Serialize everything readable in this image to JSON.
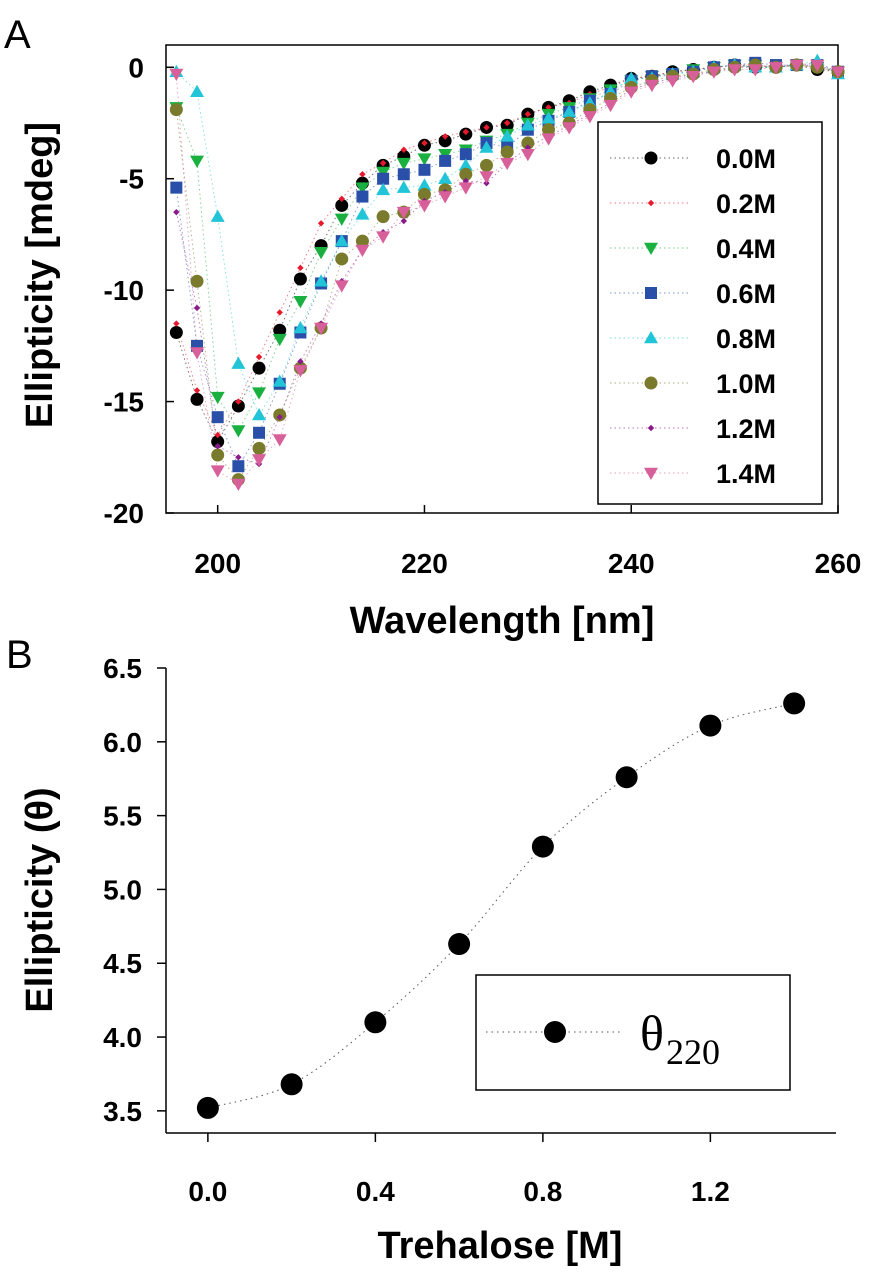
{
  "chart_data": [
    {
      "panel": "A",
      "type": "scatter",
      "xlabel": "Wavelength [nm]",
      "ylabel": "Ellipticity [mdeg]",
      "xlim": [
        195,
        260
      ],
      "ylim": [
        -20,
        1
      ],
      "xticks": [
        200,
        220,
        240,
        260
      ],
      "yticks": [
        0,
        -5,
        -10,
        -15,
        -20
      ],
      "grid": false,
      "legend_position": "right",
      "x": [
        196,
        198,
        200,
        202,
        204,
        206,
        208,
        210,
        212,
        214,
        216,
        218,
        220,
        222,
        224,
        226,
        228,
        230,
        232,
        234,
        236,
        238,
        240,
        242,
        244,
        246,
        248,
        250,
        252,
        254,
        256,
        258,
        260
      ],
      "series": [
        {
          "name": "0.0M",
          "marker": "circle",
          "color": "#000000",
          "size": "large",
          "values": [
            -11.9,
            -14.9,
            -16.8,
            -15.2,
            -13.5,
            -11.8,
            -9.5,
            -8.0,
            -6.2,
            -5.2,
            -4.4,
            -4.0,
            -3.5,
            -3.3,
            -3.0,
            -2.7,
            -2.6,
            -2.1,
            -1.8,
            -1.5,
            -1.1,
            -0.8,
            -0.5,
            -0.4,
            -0.2,
            -0.1,
            0.0,
            0.1,
            0.0,
            0.0,
            0.1,
            -0.1,
            -0.2
          ]
        },
        {
          "name": "0.2M",
          "marker": "diamond",
          "color": "#e8192c",
          "size": "small",
          "values": [
            -11.5,
            -14.5,
            -16.5,
            -15.0,
            -13.0,
            -11.0,
            -9.0,
            -7.0,
            -5.9,
            -4.8,
            -4.3,
            -3.7,
            -3.4,
            -3.1,
            -2.9,
            -2.7,
            -2.5,
            -2.1,
            -1.8,
            -1.6,
            -1.2,
            -0.9,
            -0.5,
            -0.4,
            -0.2,
            -0.1,
            0.0,
            0.1,
            0.1,
            0.0,
            0.1,
            0.0,
            -0.2
          ]
        },
        {
          "name": "0.4M",
          "marker": "triangle-down",
          "color": "#1ab040",
          "size": "large",
          "values": [
            -1.8,
            -4.2,
            -14.8,
            -16.3,
            -14.6,
            -12.2,
            -10.5,
            -8.3,
            -6.8,
            -5.4,
            -4.7,
            -4.3,
            -4.1,
            -3.9,
            -3.7,
            -3.3,
            -3.0,
            -2.5,
            -2.1,
            -1.8,
            -1.4,
            -1.0,
            -0.6,
            -0.4,
            -0.3,
            -0.1,
            0.0,
            0.1,
            0.1,
            0.0,
            0.1,
            0.0,
            -0.2
          ]
        },
        {
          "name": "0.6M",
          "marker": "square",
          "color": "#2a4fa8",
          "size": "large",
          "values": [
            -5.4,
            -12.5,
            -15.7,
            -17.9,
            -16.4,
            -14.2,
            -11.9,
            -9.7,
            -7.8,
            -5.8,
            -5.0,
            -4.8,
            -4.6,
            -4.2,
            -3.9,
            -3.4,
            -3.6,
            -2.8,
            -2.4,
            -2.0,
            -1.5,
            -1.2,
            -0.6,
            -0.4,
            -0.3,
            -0.2,
            0.0,
            0.1,
            0.2,
            0.1,
            0.1,
            0.1,
            -0.2
          ]
        },
        {
          "name": "0.8M",
          "marker": "triangle-up",
          "color": "#22c4d8",
          "size": "large",
          "values": [
            -0.2,
            -1.1,
            -6.7,
            -13.3,
            -15.6,
            -14.1,
            -11.7,
            -9.6,
            -7.8,
            -6.6,
            -5.5,
            -5.4,
            -5.3,
            -5.0,
            -4.4,
            -3.6,
            -3.1,
            -2.6,
            -2.3,
            -2.0,
            -1.6,
            -1.1,
            -0.5,
            -0.5,
            -0.3,
            -0.2,
            0.0,
            0.1,
            0.0,
            0.0,
            0.1,
            0.3,
            -0.3
          ]
        },
        {
          "name": "1.0M",
          "marker": "circle",
          "color": "#7a7a2c",
          "size": "large",
          "values": [
            -1.9,
            -9.6,
            -17.4,
            -18.5,
            -17.1,
            -15.6,
            -13.5,
            -11.7,
            -8.6,
            -7.8,
            -6.7,
            -6.5,
            -5.7,
            -5.5,
            -4.8,
            -4.4,
            -3.8,
            -3.4,
            -2.8,
            -2.5,
            -1.9,
            -1.4,
            -0.9,
            -0.6,
            -0.4,
            -0.3,
            -0.1,
            0.0,
            0.1,
            0.0,
            0.1,
            0.0,
            -0.2
          ]
        },
        {
          "name": "1.2M",
          "marker": "diamond",
          "color": "#8a1a8a",
          "size": "small",
          "values": [
            -6.5,
            -10.8,
            -17.0,
            -17.5,
            -17.8,
            -15.7,
            -13.2,
            -11.5,
            -9.6,
            -8.2,
            -7.4,
            -6.9,
            -6.0,
            -5.6,
            -5.1,
            -5.2,
            -4.3,
            -3.6,
            -3.1,
            -2.6,
            -2.1,
            -1.6,
            -1.0,
            -0.7,
            -0.5,
            -0.3,
            -0.2,
            0.0,
            0.0,
            0.1,
            0.1,
            0.2,
            -0.2
          ]
        },
        {
          "name": "1.4M",
          "marker": "triangle-down",
          "color": "#d8609a",
          "size": "large",
          "values": [
            -0.3,
            -12.8,
            -18.1,
            -18.7,
            -17.6,
            -16.7,
            -13.6,
            -11.7,
            -9.8,
            -8.2,
            -7.6,
            -6.5,
            -6.2,
            -5.8,
            -5.4,
            -4.9,
            -4.3,
            -3.9,
            -3.2,
            -2.7,
            -2.2,
            -1.7,
            -1.1,
            -0.8,
            -0.6,
            -0.4,
            -0.2,
            -0.1,
            -0.1,
            0.0,
            0.1,
            0.1,
            -0.2
          ]
        }
      ]
    },
    {
      "panel": "B",
      "type": "line",
      "xlabel": "Trehalose [M]",
      "ylabel": "Ellipticity (θ)",
      "xlim": [
        -0.1,
        1.5
      ],
      "ylim": [
        3.35,
        6.5
      ],
      "xticks": [
        0.0,
        0.4,
        0.8,
        1.2
      ],
      "yticks": [
        3.5,
        4.0,
        4.5,
        5.0,
        5.5,
        6.0,
        6.5
      ],
      "grid": false,
      "legend_position": "bottom-right",
      "x": [
        0.0,
        0.2,
        0.4,
        0.6,
        0.8,
        1.0,
        1.2,
        1.4
      ],
      "series": [
        {
          "name": "θ",
          "name_subscript": "220",
          "marker": "circle",
          "color": "#000000",
          "values": [
            3.52,
            3.68,
            4.1,
            4.63,
            5.29,
            5.76,
            6.11,
            6.26
          ]
        }
      ]
    }
  ],
  "tick_text": {
    "a_x": [
      "200",
      "220",
      "240",
      "260"
    ],
    "a_y": [
      "0",
      "-5",
      "-10",
      "-15",
      "-20"
    ],
    "b_x": [
      "0.0",
      "0.4",
      "0.8",
      "1.2"
    ],
    "b_y": [
      "3.5",
      "4.0",
      "4.5",
      "5.0",
      "5.5",
      "6.0",
      "6.5"
    ]
  }
}
